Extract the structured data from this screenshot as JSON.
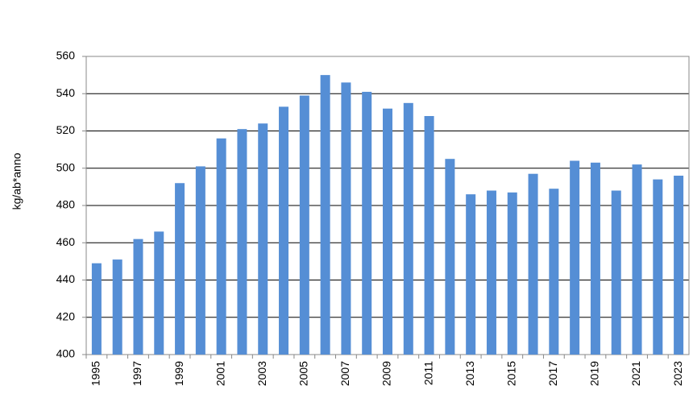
{
  "chart_data": {
    "type": "bar",
    "y_label": "kg/ab*anno",
    "categories": [
      "1995",
      null,
      "1997",
      null,
      "1999",
      null,
      "2001",
      null,
      "2003",
      null,
      "2005",
      null,
      "2007",
      null,
      "2009",
      null,
      "2011",
      null,
      "2013",
      null,
      "2015",
      null,
      "2017",
      null,
      "2019",
      null,
      "2021",
      null,
      "2023"
    ],
    "values": [
      449,
      451,
      462,
      466,
      492,
      501,
      516,
      521,
      524,
      533,
      539,
      550,
      546,
      541,
      532,
      535,
      528,
      505,
      486,
      488,
      487,
      497,
      489,
      504,
      503,
      488,
      502,
      494,
      496
    ],
    "color": "#558ed5",
    "ylim": [
      400,
      560
    ],
    "yticks": [
      400,
      420,
      440,
      460,
      480,
      500,
      520,
      540,
      560
    ],
    "grid": true
  }
}
